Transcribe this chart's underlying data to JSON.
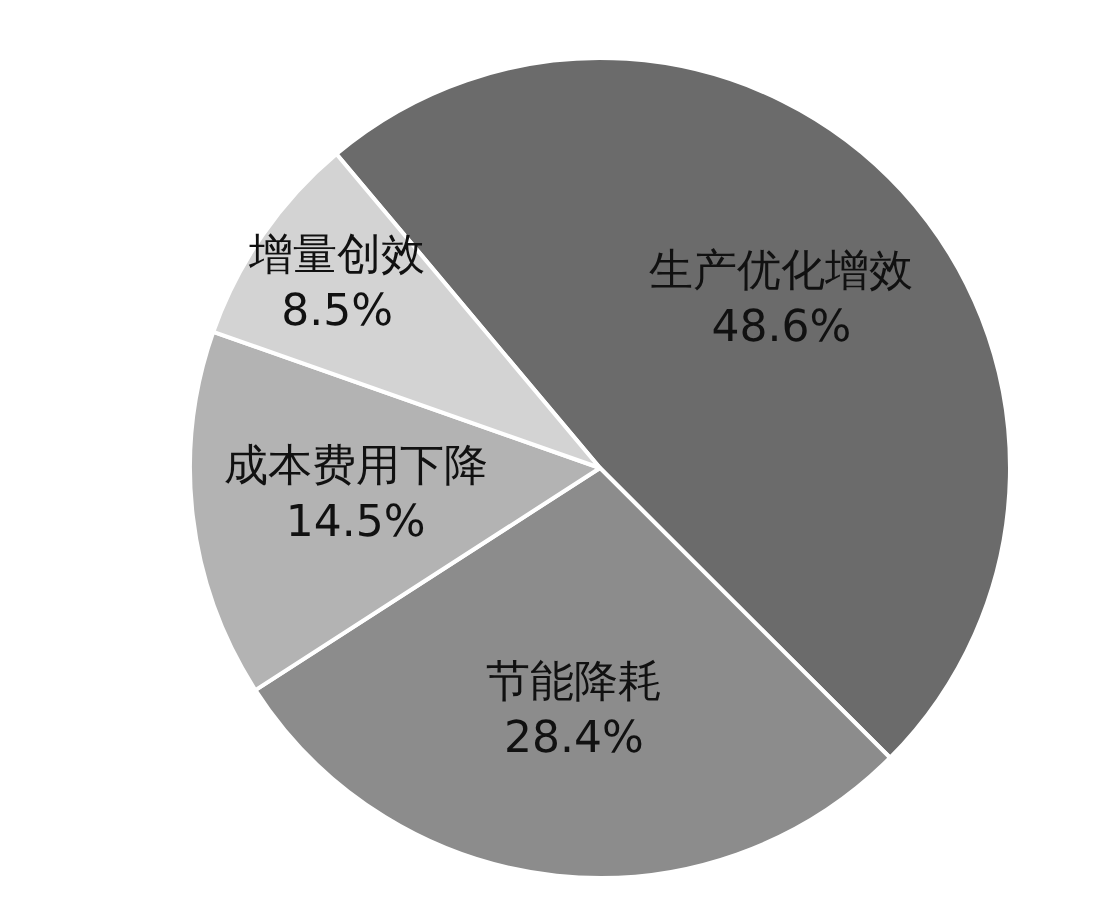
{
  "chart_data": {
    "type": "pie",
    "categories": [
      "生产优化增效",
      "节能降耗",
      "成本费用下降",
      "增量创效"
    ],
    "values": [
      48.6,
      28.4,
      14.5,
      8.5
    ],
    "colors": [
      "#6b6b6b",
      "#8c8c8c",
      "#b3b3b3",
      "#d3d3d3"
    ],
    "value_labels": [
      "48.6%",
      "28.4%",
      "14.5%",
      "8.5%"
    ],
    "legend": false
  }
}
